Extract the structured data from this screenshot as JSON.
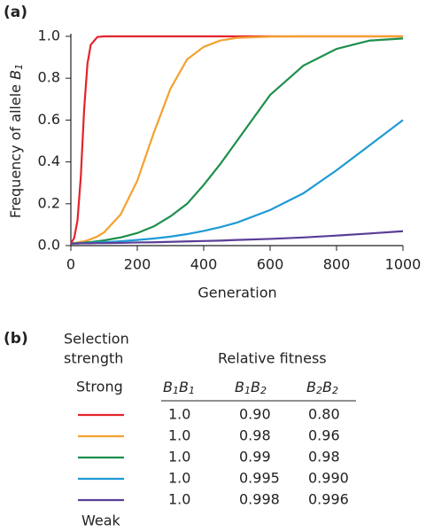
{
  "chart_data": {
    "type": "line",
    "panel_label": "(a)",
    "xlabel": "Generation",
    "ylabel": {
      "text": "Frequency of allele",
      "symbol": "B",
      "sub": "1"
    },
    "x": [
      0,
      10,
      20,
      30,
      40,
      50,
      60,
      80,
      100,
      150,
      200,
      250,
      300,
      350,
      400,
      450,
      500,
      600,
      700,
      800,
      900,
      1000
    ],
    "series": [
      {
        "color": "#e3242b",
        "values": [
          0.01,
          0.036,
          0.12,
          0.33,
          0.65,
          0.87,
          0.96,
          0.997,
          1.0,
          1.0,
          1.0,
          1.0,
          1.0,
          1.0,
          1.0,
          1.0,
          1.0,
          1.0,
          1.0,
          1.0,
          1.0,
          1.0
        ]
      },
      {
        "color": "#f4a12f",
        "values": [
          0.01,
          0.012,
          0.015,
          0.018,
          0.021,
          0.025,
          0.031,
          0.044,
          0.063,
          0.149,
          0.31,
          0.54,
          0.75,
          0.89,
          0.95,
          0.98,
          0.993,
          0.999,
          1.0,
          1.0,
          1.0,
          1.0
        ]
      },
      {
        "color": "#1d8f4c",
        "values": [
          0.01,
          0.011,
          0.012,
          0.013,
          0.014,
          0.016,
          0.017,
          0.021,
          0.025,
          0.039,
          0.06,
          0.092,
          0.14,
          0.2,
          0.29,
          0.39,
          0.5,
          0.72,
          0.86,
          0.94,
          0.98,
          0.99
        ]
      },
      {
        "color": "#1e9ad6",
        "values": [
          0.01,
          0.01,
          0.011,
          0.012,
          0.012,
          0.013,
          0.013,
          0.015,
          0.016,
          0.021,
          0.027,
          0.034,
          0.043,
          0.055,
          0.07,
          0.088,
          0.11,
          0.17,
          0.25,
          0.36,
          0.48,
          0.6
        ]
      },
      {
        "color": "#5a3e97",
        "values": [
          0.01,
          0.01,
          0.01,
          0.011,
          0.011,
          0.011,
          0.011,
          0.012,
          0.012,
          0.013,
          0.015,
          0.016,
          0.018,
          0.02,
          0.022,
          0.024,
          0.027,
          0.032,
          0.039,
          0.048,
          0.058,
          0.069
        ]
      }
    ],
    "xlim": [
      0,
      1000
    ],
    "xticks": [
      0,
      200,
      400,
      600,
      800,
      1000
    ],
    "ylim": [
      0,
      1
    ],
    "yticks": [
      {
        "value": 0,
        "label": "0.0"
      },
      0.2,
      0.4,
      0.6,
      0.8,
      {
        "value": 1,
        "label": "1.0"
      }
    ],
    "grid": false
  },
  "table": {
    "panel_label": "(b)",
    "strength_header": [
      "Selection",
      "strength"
    ],
    "fitness_header": "Relative fitness",
    "genotypes": [
      [
        "B",
        "1",
        "B",
        "1"
      ],
      [
        "B",
        "1",
        "B",
        "2"
      ],
      [
        "B",
        "2",
        "B",
        "2"
      ]
    ],
    "strong": "Strong",
    "weak": "Weak",
    "rows": [
      [
        "1.0",
        "0.90",
        "0.80"
      ],
      [
        "1.0",
        "0.98",
        "0.96"
      ],
      [
        "1.0",
        "0.99",
        "0.98"
      ],
      [
        "1.0",
        "0.995",
        "0.990"
      ],
      [
        "1.0",
        "0.998",
        "0.996"
      ]
    ]
  }
}
